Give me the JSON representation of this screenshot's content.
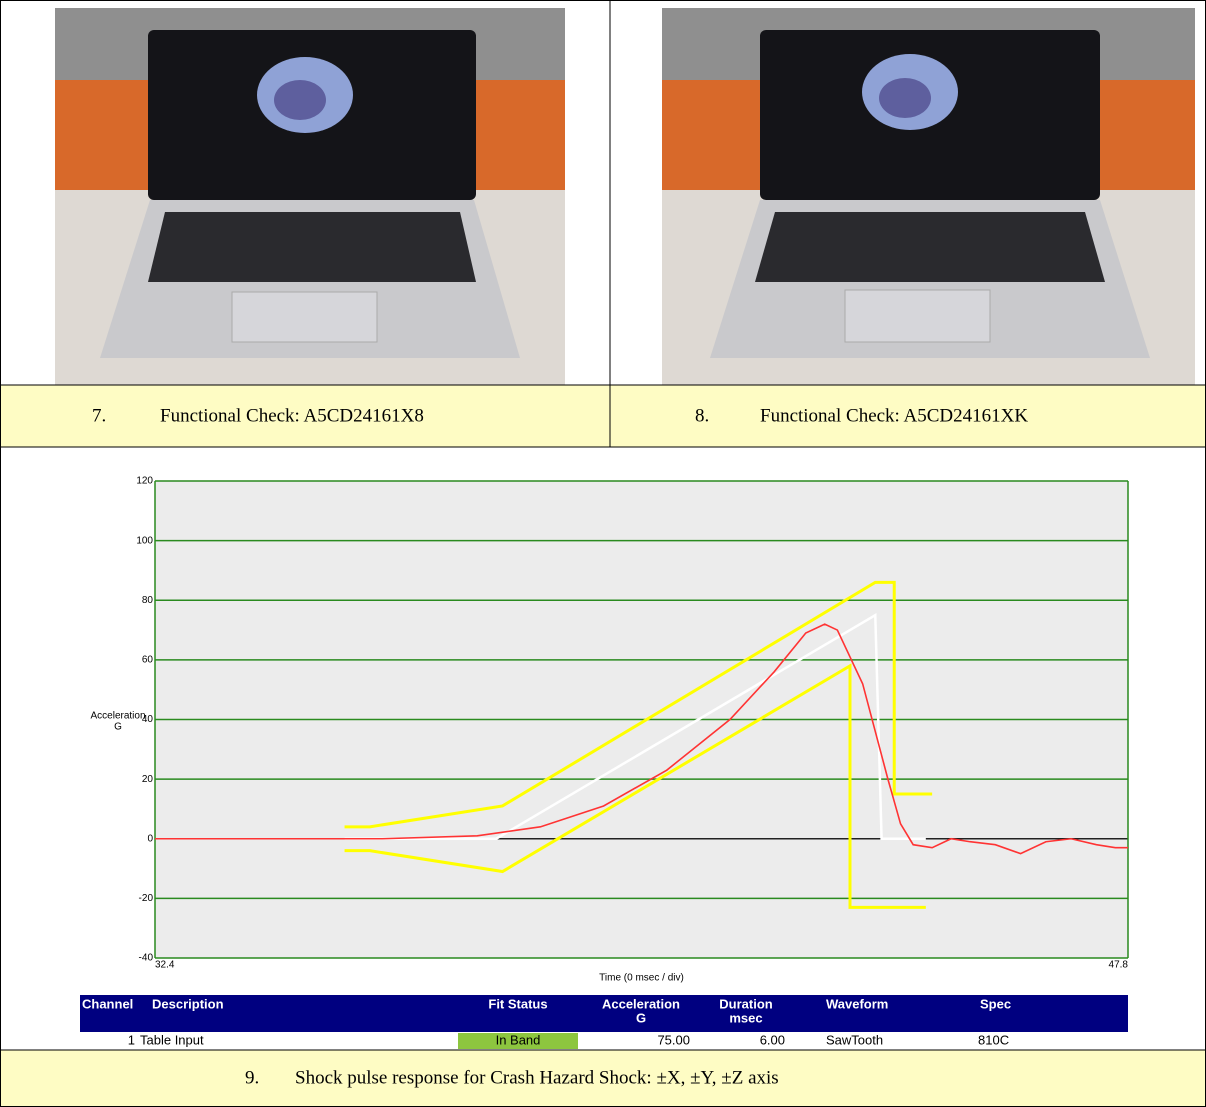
{
  "photos": [
    {
      "number": "7.",
      "caption": "Functional Check: A5CD24161X8"
    },
    {
      "number": "8.",
      "caption": "Functional Check: A5CD24161XK"
    }
  ],
  "chart_data": {
    "type": "line",
    "ylabel": [
      "Acceleration",
      "G"
    ],
    "xlabel": "Time (0 msec / div)",
    "xlim": [
      32.4,
      47.8
    ],
    "xticks": [
      32.4,
      47.8
    ],
    "ylim": [
      -40,
      120
    ],
    "yticks": [
      -40,
      -20,
      0,
      20,
      40,
      60,
      80,
      100,
      120
    ],
    "grid": true,
    "grid_color": "#2a8a1f",
    "zero_line_color": "#222222",
    "series": [
      {
        "color": "#ffffff",
        "x": [
          35.4,
          37.8,
          43.8,
          43.9,
          44.6
        ],
        "values": [
          0,
          0,
          75,
          0,
          0
        ]
      },
      {
        "color": "#ffff00",
        "x": [
          35.4,
          35.8,
          37.9,
          43.8,
          44.1,
          44.1,
          44.7
        ],
        "values": [
          4,
          4,
          11,
          86,
          86,
          15,
          15
        ]
      },
      {
        "color": "#ffff00",
        "x": [
          35.4,
          35.8,
          37.9,
          43.4,
          43.4,
          44.6
        ],
        "values": [
          -4,
          -4,
          -11,
          58,
          -23,
          -23
        ]
      },
      {
        "color": "#ff3333",
        "x": [
          32.4,
          34,
          36,
          37.5,
          38.5,
          39.5,
          40.5,
          41.5,
          42.2,
          42.7,
          43,
          43.2,
          43.6,
          44,
          44.2,
          44.4,
          44.7,
          45,
          45.3,
          45.7,
          46.1,
          46.5,
          46.9,
          47.3,
          47.6,
          47.8
        ],
        "values": [
          0,
          0,
          0,
          1,
          4,
          11,
          23,
          40,
          56,
          69,
          72,
          70,
          52,
          20,
          5,
          -2,
          -3,
          0,
          -1,
          -2,
          -5,
          -1,
          0,
          -2,
          -3,
          -3
        ]
      }
    ]
  },
  "table": {
    "header": [
      [
        "Channel"
      ],
      [
        "Description"
      ],
      [
        "Fit Status"
      ],
      [
        "Acceleration",
        "G"
      ],
      [
        "Duration",
        "msec"
      ],
      [
        "Waveform"
      ],
      [
        "Spec"
      ]
    ],
    "rows": [
      [
        "1",
        "Table Input",
        "In Band",
        "75.00",
        "6.00",
        "SawTooth",
        "810C"
      ]
    ]
  },
  "figure_caption": {
    "number": "9.",
    "caption": "Shock pulse response for Crash Hazard Shock: ±X, ±Y, ±Z axis"
  }
}
